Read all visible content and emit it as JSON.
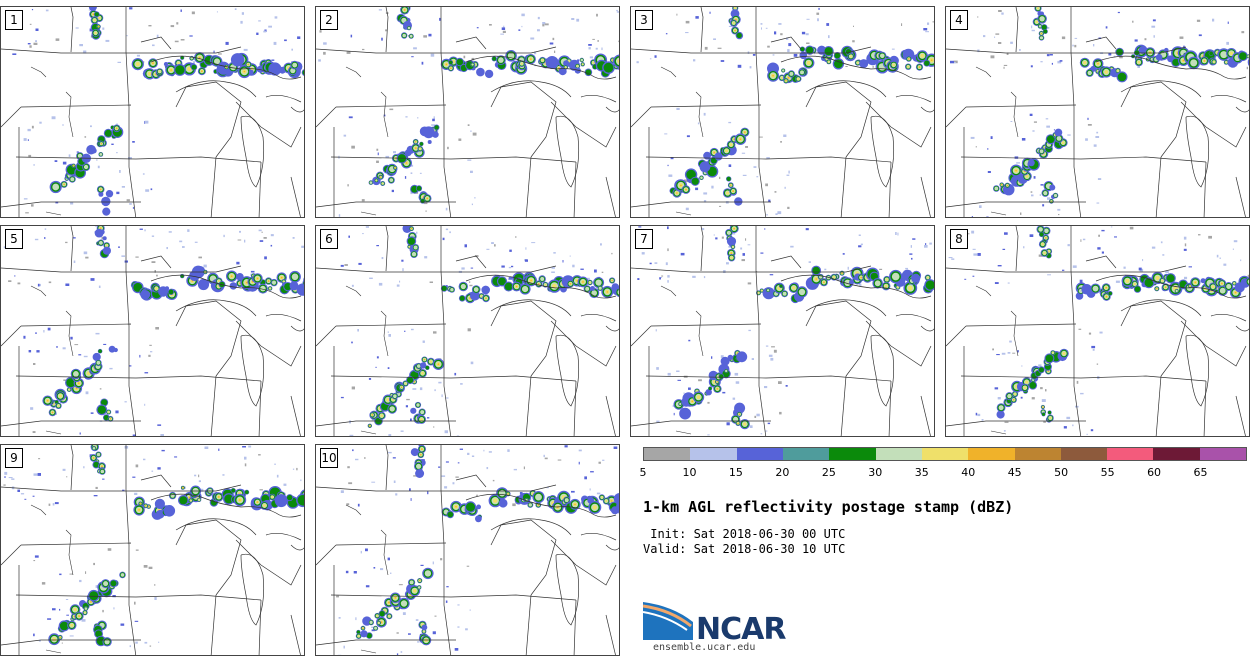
{
  "panels": [
    "1",
    "2",
    "3",
    "4",
    "5",
    "6",
    "7",
    "8",
    "9",
    "10"
  ],
  "colorbar": {
    "colors": [
      "#a6a6a6",
      "#b6c2ea",
      "#5763d8",
      "#4f9c9c",
      "#0b8a0b",
      "#c3dfba",
      "#efe06a",
      "#f0b22a",
      "#bd8431",
      "#8d5a3c",
      "#f35b7c",
      "#6d1936",
      "#a952aa"
    ],
    "ticks": [
      "5",
      "10",
      "15",
      "20",
      "25",
      "30",
      "35",
      "40",
      "45",
      "50",
      "55",
      "60",
      "65"
    ]
  },
  "title": "1-km AGL reflectivity postage stamp (dBZ)",
  "init": " Init: Sat 2018-06-30 00 UTC",
  "valid": "Valid: Sat 2018-06-30 10 UTC",
  "logo": {
    "text": "NCAR",
    "url": "ensemble.ucar.edu"
  }
}
